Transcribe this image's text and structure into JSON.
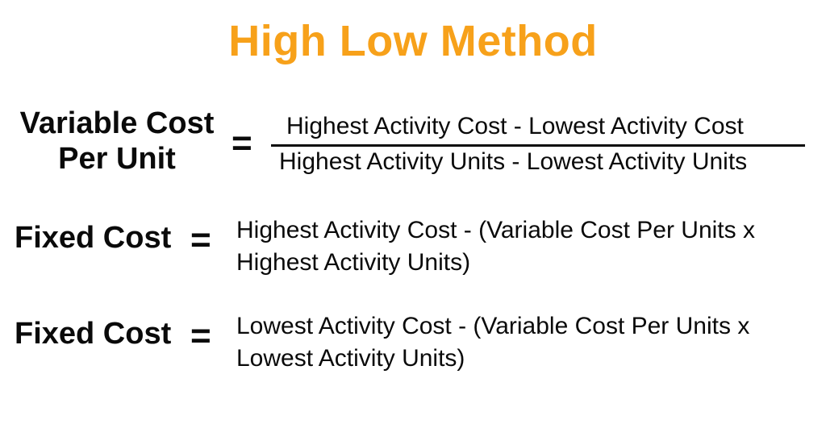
{
  "title": "High Low Method",
  "colors": {
    "title": "#f7a11a",
    "text": "#0a0a0a",
    "background": "#ffffff"
  },
  "formula_variable": {
    "label_line1": "Variable Cost",
    "label_line2": "Per Unit",
    "equals": "=",
    "numerator": "Highest Activity Cost - Lowest Activity Cost",
    "denominator": "Highest Activity Units - Lowest Activity Units"
  },
  "formula_fixed_high": {
    "label": "Fixed Cost",
    "equals": "=",
    "line1": "Highest Activity Cost - (Variable Cost Per Units  x",
    "line2": "Highest Activity Units)"
  },
  "formula_fixed_low": {
    "label": "Fixed Cost",
    "equals": "=",
    "line1": "Lowest Activity Cost - (Variable Cost Per Units  x",
    "line2": "Lowest Activity Units)"
  }
}
